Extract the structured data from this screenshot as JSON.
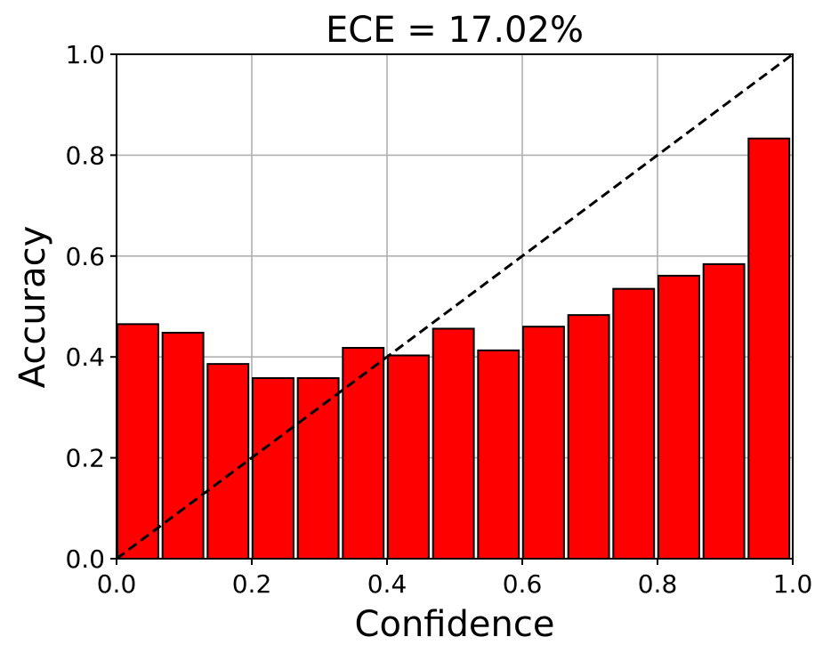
{
  "chart_data": {
    "type": "bar",
    "title": "ECE = 17.02%",
    "xlabel": "Confidence",
    "ylabel": "Accuracy",
    "xlim": [
      0.0,
      1.0
    ],
    "ylim": [
      0.0,
      1.0
    ],
    "grid": true,
    "bin_width": 0.0667,
    "bins": [
      {
        "x": 0.0,
        "accuracy": 0.465
      },
      {
        "x": 0.0667,
        "accuracy": 0.448
      },
      {
        "x": 0.1333,
        "accuracy": 0.386
      },
      {
        "x": 0.2,
        "accuracy": 0.358
      },
      {
        "x": 0.2667,
        "accuracy": 0.358
      },
      {
        "x": 0.3333,
        "accuracy": 0.418
      },
      {
        "x": 0.4,
        "accuracy": 0.403
      },
      {
        "x": 0.4667,
        "accuracy": 0.456
      },
      {
        "x": 0.5333,
        "accuracy": 0.413
      },
      {
        "x": 0.6,
        "accuracy": 0.46
      },
      {
        "x": 0.6667,
        "accuracy": 0.483
      },
      {
        "x": 0.7333,
        "accuracy": 0.535
      },
      {
        "x": 0.8,
        "accuracy": 0.561
      },
      {
        "x": 0.8667,
        "accuracy": 0.584
      },
      {
        "x": 0.9333,
        "accuracy": 0.833
      }
    ],
    "reference_line": {
      "from": [
        0.0,
        0.0
      ],
      "to": [
        1.0,
        1.0
      ],
      "style": "dashed",
      "color": "#000000"
    },
    "x_ticks": [
      {
        "value": 0.0,
        "label": "0.0"
      },
      {
        "value": 0.2,
        "label": "0.2"
      },
      {
        "value": 0.4,
        "label": "0.4"
      },
      {
        "value": 0.6,
        "label": "0.6"
      },
      {
        "value": 0.8,
        "label": "0.8"
      },
      {
        "value": 1.0,
        "label": "1.0"
      }
    ],
    "y_ticks": [
      {
        "value": 0.0,
        "label": "0.0"
      },
      {
        "value": 0.2,
        "label": "0.2"
      },
      {
        "value": 0.4,
        "label": "0.4"
      },
      {
        "value": 0.6,
        "label": "0.6"
      },
      {
        "value": 0.8,
        "label": "0.8"
      },
      {
        "value": 1.0,
        "label": "1.0"
      }
    ],
    "colors": {
      "bar_fill": "#ff0000",
      "bar_edge": "#000000",
      "grid": "#b0b0b0",
      "axis": "#000000"
    }
  }
}
